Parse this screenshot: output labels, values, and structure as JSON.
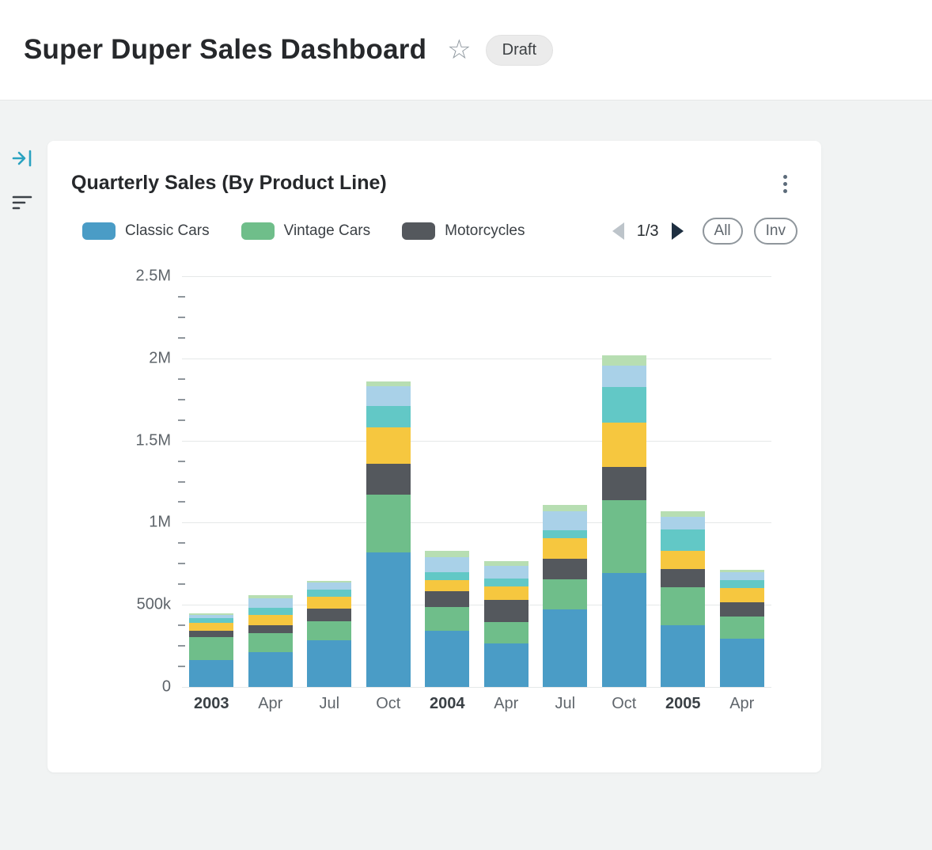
{
  "header": {
    "title": "Super Duper Sales Dashboard",
    "badge": "Draft"
  },
  "icons": {
    "star": "star-outline-icon",
    "collapse": "collapse-panel-icon",
    "filter": "filter-icon",
    "menu": "kebab-menu-icon",
    "prev": "prev-page-arrow-icon",
    "next": "next-page-arrow-icon"
  },
  "card": {
    "title": "Quarterly Sales (By Product Line)",
    "pagination": {
      "label": "1/3"
    },
    "buttons": [
      {
        "label": "All"
      },
      {
        "label": "Inv"
      }
    ]
  },
  "chart_data": {
    "type": "bar",
    "stacked": true,
    "title": "Quarterly Sales (By Product Line)",
    "x": [
      "2003",
      "Apr",
      "Jul",
      "Oct",
      "2004",
      "Apr",
      "Jul",
      "Oct",
      "2005",
      "Apr"
    ],
    "bold_x_indices": [
      0,
      4,
      8
    ],
    "ylim": [
      0,
      2500000
    ],
    "minor_tick_step": 125000,
    "grid": true,
    "y_ticks": [
      {
        "label": "2.5M",
        "value": 2500000
      },
      {
        "label": "2M",
        "value": 2000000
      },
      {
        "label": "1.5M",
        "value": 1500000
      },
      {
        "label": "1M",
        "value": 1000000
      },
      {
        "label": "500k",
        "value": 500000
      },
      {
        "label": "0",
        "value": 0
      }
    ],
    "legend": {
      "position": "top",
      "visible_count": 3,
      "page": "1/3"
    },
    "series": [
      {
        "name": "Classic Cars",
        "color": "#4a9cc6",
        "values": [
          165000,
          210000,
          285000,
          820000,
          340000,
          265000,
          470000,
          695000,
          375000,
          295000
        ]
      },
      {
        "name": "Vintage Cars",
        "color": "#6fbe8a",
        "values": [
          140000,
          120000,
          115000,
          350000,
          145000,
          130000,
          185000,
          440000,
          230000,
          135000
        ]
      },
      {
        "name": "Motorcycles",
        "color": "#54585d",
        "values": [
          35000,
          45000,
          75000,
          190000,
          100000,
          135000,
          125000,
          205000,
          115000,
          85000
        ]
      },
      {
        "name": "(unlabeled series 4 - yellow)",
        "color": "#f6c73f",
        "values": [
          50000,
          65000,
          75000,
          220000,
          65000,
          80000,
          125000,
          270000,
          110000,
          85000
        ]
      },
      {
        "name": "(unlabeled series 5 - teal)",
        "color": "#62c8c6",
        "values": [
          30000,
          40000,
          45000,
          130000,
          50000,
          50000,
          50000,
          215000,
          130000,
          50000
        ]
      },
      {
        "name": "(unlabeled series 6 - light blue)",
        "color": "#a9d1e8",
        "values": [
          20000,
          60000,
          40000,
          120000,
          90000,
          75000,
          115000,
          130000,
          75000,
          50000
        ]
      },
      {
        "name": "(unlabeled series 7 - pale green)",
        "color": "#b7deb2",
        "values": [
          10000,
          20000,
          10000,
          30000,
          40000,
          30000,
          40000,
          65000,
          35000,
          15000
        ]
      }
    ]
  }
}
